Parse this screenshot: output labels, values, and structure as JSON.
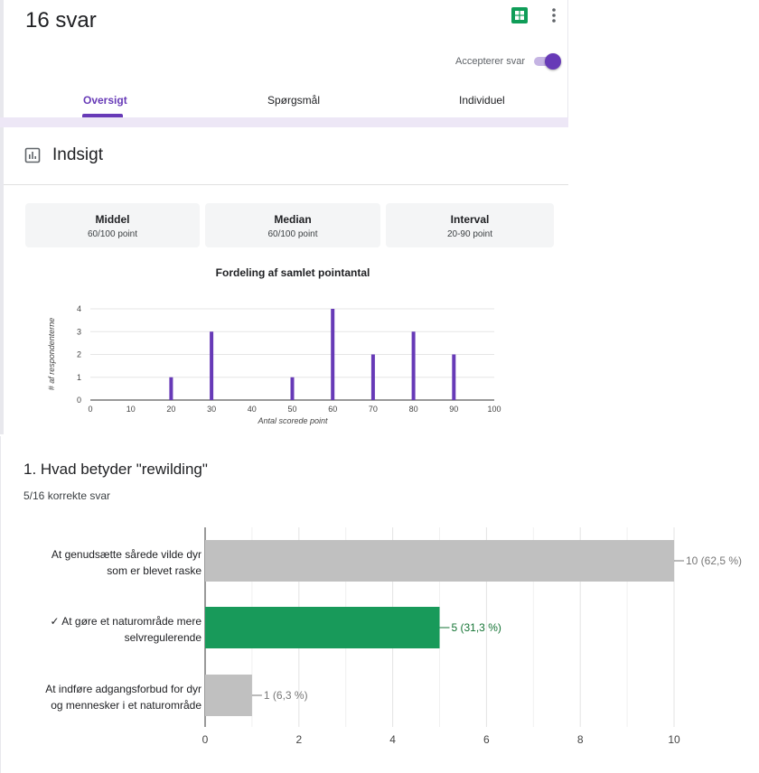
{
  "header": {
    "title": "16 svar",
    "accept_label": "Accepterer svar",
    "accepting": true,
    "tabs": [
      {
        "label": "Oversigt",
        "active": true
      },
      {
        "label": "Spørgsmål",
        "active": false
      },
      {
        "label": "Individuel",
        "active": false
      }
    ]
  },
  "insight": {
    "title": "Indsigt",
    "stats": [
      {
        "label": "Middel",
        "value": "60/100 point"
      },
      {
        "label": "Median",
        "value": "60/100 point"
      },
      {
        "label": "Interval",
        "value": "20-90 point"
      }
    ]
  },
  "question": {
    "title": "1. Hvad betyder \"rewilding\"",
    "score": "5/16 korrekte svar"
  },
  "chart_data": [
    {
      "type": "bar",
      "title": "Fordeling af samlet pointantal",
      "xlabel": "Antal scorede point",
      "ylabel": "# af respondenterne",
      "x": [
        20,
        30,
        50,
        60,
        70,
        80,
        90
      ],
      "values": [
        1,
        3,
        1,
        4,
        2,
        3,
        2
      ],
      "xticks": [
        "0",
        "10",
        "20",
        "30",
        "40",
        "50",
        "60",
        "70",
        "80",
        "90",
        "100"
      ],
      "yticks": [
        "0",
        "1",
        "2",
        "3",
        "4"
      ],
      "xlim": [
        0,
        100
      ],
      "ylim": [
        0,
        4
      ],
      "grid": true,
      "color": "#673ab7"
    },
    {
      "type": "bar",
      "orientation": "horizontal",
      "categories": [
        [
          "At genudsætte sårede vilde dyr",
          "som er blevet raske"
        ],
        [
          "✓ At gøre et naturområde mere",
          "selvregulerende"
        ],
        [
          "At indføre adgangsforbud for dyr",
          "og mennesker i et naturområde"
        ]
      ],
      "values": [
        10,
        5,
        1
      ],
      "data_labels": [
        "10 (62,5 %)",
        "5 (31,3 %)",
        "1 (6,3 %)"
      ],
      "correct": [
        false,
        true,
        false
      ],
      "xticks": [
        "0",
        "2",
        "4",
        "6",
        "8",
        "10"
      ],
      "xlim": [
        0,
        10
      ],
      "grid": true,
      "colors": {
        "default": "#c0c0c0",
        "correct": "#189a5a",
        "label_default": "#777777",
        "label_correct": "#137333"
      }
    }
  ]
}
